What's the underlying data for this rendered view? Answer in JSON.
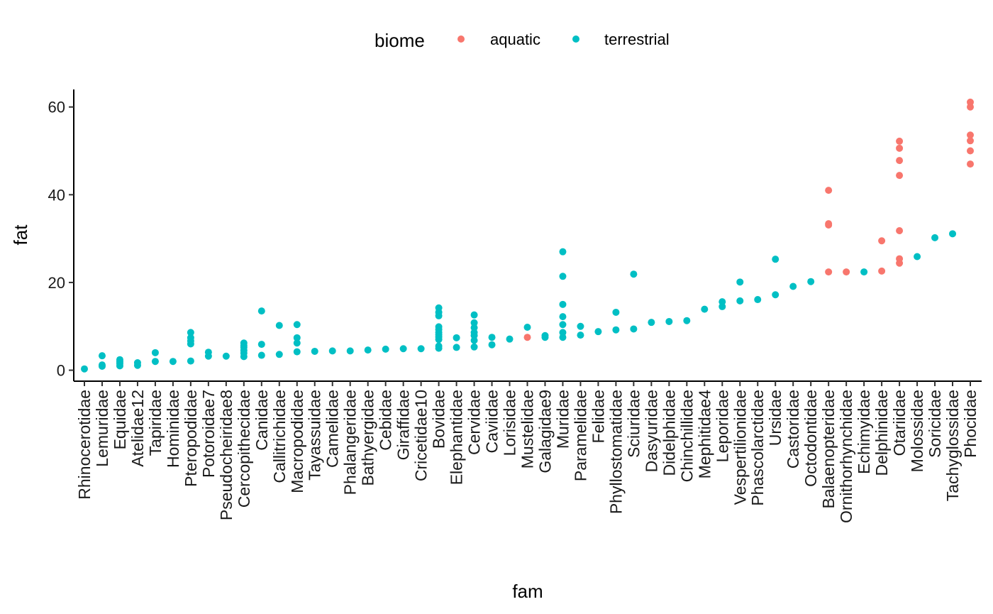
{
  "chart_data": {
    "type": "scatter",
    "xlabel": "fam",
    "ylabel": "fat",
    "ylim": [
      -2.5,
      64
    ],
    "yticks": [
      0,
      20,
      40,
      60
    ],
    "grid": false,
    "legend": {
      "title": "biome",
      "placement": "top",
      "entries": [
        {
          "name": "aquatic",
          "color": "#F8766D"
        },
        {
          "name": "terrestrial",
          "color": "#00BFC4"
        }
      ]
    },
    "categories": [
      "Rhinocerotidae",
      "Lemuridae",
      "Equidae",
      "Atelidae12",
      "Tapiridae",
      "Hominidae",
      "Pteropodidae",
      "Potoroidae7",
      "Pseudocheiridae8",
      "Cercopithecidae",
      "Canidae",
      "Callitrichidae",
      "Macropodidae",
      "Tayassuidae",
      "Camelidae",
      "Phalangeridae",
      "Bathyergidae",
      "Cebidae",
      "Giraffidae",
      "Cricetidae10",
      "Bovidae",
      "Elephantidae",
      "Cervidae",
      "Caviidae",
      "Lorisidae",
      "Mustelidae",
      "Galagidae9",
      "Muridae",
      "Paramelidae",
      "Felidae",
      "Phyllostomatidae",
      "Sciuridae",
      "Dasyuridae",
      "Didelphidae",
      "Chinchillidae",
      "Mephitidae4",
      "Leporidae",
      "Vespertilionidae",
      "Phascolarctidae",
      "Ursidae",
      "Castoridae",
      "Octodontidae",
      "Balaenopteridae",
      "Ornithorhynchidae",
      "Echimyidae",
      "Delphinidae",
      "Otariidae",
      "Molossidae",
      "Soricidae",
      "Tachyglossidae",
      "Phocidae"
    ],
    "series": [
      {
        "name": "aquatic",
        "color": "#F8766D",
        "points": [
          [
            "Mustelidae",
            7.5
          ],
          [
            "Balaenopteridae",
            22.4
          ],
          [
            "Balaenopteridae",
            33.1
          ],
          [
            "Balaenopteridae",
            33.4
          ],
          [
            "Balaenopteridae",
            41.0
          ],
          [
            "Ornithorhynchidae",
            22.4
          ],
          [
            "Delphinidae",
            22.6
          ],
          [
            "Delphinidae",
            29.5
          ],
          [
            "Otariidae",
            24.4
          ],
          [
            "Otariidae",
            25.4
          ],
          [
            "Otariidae",
            31.8
          ],
          [
            "Otariidae",
            44.4
          ],
          [
            "Otariidae",
            47.8
          ],
          [
            "Otariidae",
            50.6
          ],
          [
            "Otariidae",
            52.2
          ],
          [
            "Phocidae",
            47.0
          ],
          [
            "Phocidae",
            50.0
          ],
          [
            "Phocidae",
            52.3
          ],
          [
            "Phocidae",
            53.6
          ],
          [
            "Phocidae",
            60.0
          ],
          [
            "Phocidae",
            61.1
          ]
        ]
      },
      {
        "name": "terrestrial",
        "color": "#00BFC4",
        "points": [
          [
            "Rhinocerotidae",
            0.3
          ],
          [
            "Lemuridae",
            0.9
          ],
          [
            "Lemuridae",
            1.2
          ],
          [
            "Lemuridae",
            3.3
          ],
          [
            "Equidae",
            1.0
          ],
          [
            "Equidae",
            1.5
          ],
          [
            "Equidae",
            1.9
          ],
          [
            "Equidae",
            2.4
          ],
          [
            "Atelidae12",
            1.1
          ],
          [
            "Atelidae12",
            1.7
          ],
          [
            "Tapiridae",
            2.0
          ],
          [
            "Tapiridae",
            4.0
          ],
          [
            "Hominidae",
            2.0
          ],
          [
            "Pteropodidae",
            2.1
          ],
          [
            "Pteropodidae",
            6.0
          ],
          [
            "Pteropodidae",
            6.7
          ],
          [
            "Pteropodidae",
            7.4
          ],
          [
            "Pteropodidae",
            8.6
          ],
          [
            "Potoroidae7",
            3.2
          ],
          [
            "Potoroidae7",
            4.1
          ],
          [
            "Pseudocheiridae8",
            3.2
          ],
          [
            "Cercopithecidae",
            3.1
          ],
          [
            "Cercopithecidae",
            3.9
          ],
          [
            "Cercopithecidae",
            4.5
          ],
          [
            "Cercopithecidae",
            5.2
          ],
          [
            "Cercopithecidae",
            5.6
          ],
          [
            "Cercopithecidae",
            6.2
          ],
          [
            "Canidae",
            3.4
          ],
          [
            "Canidae",
            5.9
          ],
          [
            "Canidae",
            13.5
          ],
          [
            "Callitrichidae",
            3.6
          ],
          [
            "Callitrichidae",
            10.2
          ],
          [
            "Macropodidae",
            4.2
          ],
          [
            "Macropodidae",
            6.2
          ],
          [
            "Macropodidae",
            7.4
          ],
          [
            "Macropodidae",
            10.4
          ],
          [
            "Tayassuidae",
            4.3
          ],
          [
            "Camelidae",
            4.4
          ],
          [
            "Phalangeridae",
            4.4
          ],
          [
            "Bathyergidae",
            4.6
          ],
          [
            "Cebidae",
            4.8
          ],
          [
            "Giraffidae",
            4.9
          ],
          [
            "Cricetidae10",
            4.9
          ],
          [
            "Bovidae",
            5.0
          ],
          [
            "Bovidae",
            5.5
          ],
          [
            "Bovidae",
            7.0
          ],
          [
            "Bovidae",
            7.6
          ],
          [
            "Bovidae",
            8.1
          ],
          [
            "Bovidae",
            8.6
          ],
          [
            "Bovidae",
            9.3
          ],
          [
            "Bovidae",
            9.9
          ],
          [
            "Bovidae",
            12.4
          ],
          [
            "Bovidae",
            13.2
          ],
          [
            "Bovidae",
            14.2
          ],
          [
            "Elephantidae",
            5.2
          ],
          [
            "Elephantidae",
            7.4
          ],
          [
            "Cervidae",
            5.3
          ],
          [
            "Cervidae",
            6.8
          ],
          [
            "Cervidae",
            7.9
          ],
          [
            "Cervidae",
            8.6
          ],
          [
            "Cervidae",
            9.7
          ],
          [
            "Cervidae",
            10.8
          ],
          [
            "Cervidae",
            12.6
          ],
          [
            "Caviidae",
            5.8
          ],
          [
            "Caviidae",
            7.5
          ],
          [
            "Lorisidae",
            7.1
          ],
          [
            "Mustelidae",
            9.8
          ],
          [
            "Galagidae9",
            7.5
          ],
          [
            "Galagidae9",
            7.9
          ],
          [
            "Muridae",
            7.5
          ],
          [
            "Muridae",
            8.6
          ],
          [
            "Muridae",
            10.4
          ],
          [
            "Muridae",
            12.2
          ],
          [
            "Muridae",
            15.0
          ],
          [
            "Muridae",
            21.4
          ],
          [
            "Muridae",
            27.0
          ],
          [
            "Paramelidae",
            8.0
          ],
          [
            "Paramelidae",
            10.0
          ],
          [
            "Felidae",
            8.8
          ],
          [
            "Phyllostomatidae",
            9.2
          ],
          [
            "Phyllostomatidae",
            13.2
          ],
          [
            "Sciuridae",
            9.4
          ],
          [
            "Sciuridae",
            21.9
          ],
          [
            "Dasyuridae",
            10.9
          ],
          [
            "Didelphidae",
            11.1
          ],
          [
            "Chinchillidae",
            11.3
          ],
          [
            "Mephitidae4",
            13.9
          ],
          [
            "Leporidae",
            14.5
          ],
          [
            "Leporidae",
            15.6
          ],
          [
            "Vespertilionidae",
            15.8
          ],
          [
            "Vespertilionidae",
            20.1
          ],
          [
            "Phascolarctidae",
            16.1
          ],
          [
            "Ursidae",
            17.2
          ],
          [
            "Ursidae",
            25.3
          ],
          [
            "Castoridae",
            19.1
          ],
          [
            "Octodontidae",
            20.2
          ],
          [
            "Echimyidae",
            22.4
          ],
          [
            "Molossidae",
            25.9
          ],
          [
            "Soricidae",
            30.2
          ],
          [
            "Tachyglossidae",
            31.1
          ]
        ]
      }
    ]
  }
}
